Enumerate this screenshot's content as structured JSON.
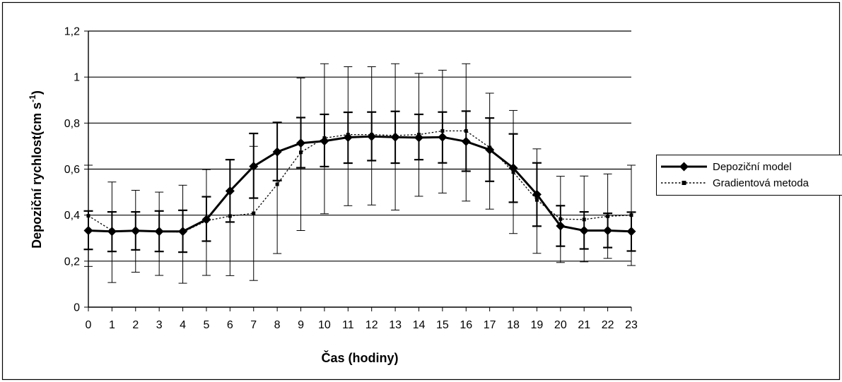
{
  "chart_data": {
    "type": "line",
    "title": "",
    "xlabel": "Čas (hodiny)",
    "ylabel": {
      "main": "Depoziční rychlost(cm s",
      "sup": "-1",
      "close": ")"
    },
    "x": [
      0,
      1,
      2,
      3,
      4,
      5,
      6,
      7,
      8,
      9,
      10,
      11,
      12,
      13,
      14,
      15,
      16,
      17,
      18,
      19,
      20,
      21,
      22,
      23
    ],
    "ylim": [
      0,
      1.2
    ],
    "yticks": [
      "0",
      "0,2",
      "0,4",
      "0,6",
      "0,8",
      "1",
      "1,2"
    ],
    "grid": "horizontal",
    "legend_position": "right",
    "series": [
      {
        "name": "Depoziční model",
        "style": "solid-bold-diamond",
        "color": "#000000",
        "values": [
          0.333,
          0.329,
          0.332,
          0.329,
          0.329,
          0.381,
          0.505,
          0.612,
          0.675,
          0.713,
          0.722,
          0.738,
          0.742,
          0.739,
          0.737,
          0.739,
          0.72,
          0.684,
          0.605,
          0.49,
          0.353,
          0.333,
          0.333,
          0.329
        ],
        "err_low": [
          0.251,
          0.242,
          0.249,
          0.242,
          0.239,
          0.287,
          0.37,
          0.474,
          0.55,
          0.606,
          0.611,
          0.626,
          0.637,
          0.626,
          0.641,
          0.627,
          0.591,
          0.547,
          0.456,
          0.352,
          0.265,
          0.253,
          0.259,
          0.244
        ],
        "err_high": [
          0.418,
          0.414,
          0.414,
          0.418,
          0.421,
          0.48,
          0.641,
          0.755,
          0.803,
          0.824,
          0.838,
          0.847,
          0.848,
          0.851,
          0.838,
          0.848,
          0.852,
          0.822,
          0.753,
          0.627,
          0.441,
          0.414,
          0.408,
          0.413
        ]
      },
      {
        "name": "Gradientová metoda",
        "style": "dotted-square",
        "color": "#000000",
        "values": [
          0.397,
          0.333,
          0.33,
          0.329,
          0.326,
          0.375,
          0.396,
          0.408,
          0.534,
          0.673,
          0.735,
          0.75,
          0.75,
          0.746,
          0.75,
          0.766,
          0.766,
          0.694,
          0.587,
          0.466,
          0.383,
          0.381,
          0.395,
          0.4
        ],
        "err_low": [
          0.177,
          0.107,
          0.152,
          0.138,
          0.104,
          0.138,
          0.137,
          0.116,
          0.233,
          0.333,
          0.406,
          0.441,
          0.444,
          0.422,
          0.482,
          0.496,
          0.461,
          0.426,
          0.32,
          0.234,
          0.194,
          0.197,
          0.212,
          0.181
        ],
        "err_high": [
          0.617,
          0.544,
          0.508,
          0.5,
          0.53,
          0.598,
          0.642,
          0.699,
          0.801,
          0.996,
          1.058,
          1.045,
          1.045,
          1.058,
          1.016,
          1.03,
          1.058,
          0.93,
          0.855,
          0.688,
          0.569,
          0.57,
          0.579,
          0.617
        ]
      }
    ]
  }
}
